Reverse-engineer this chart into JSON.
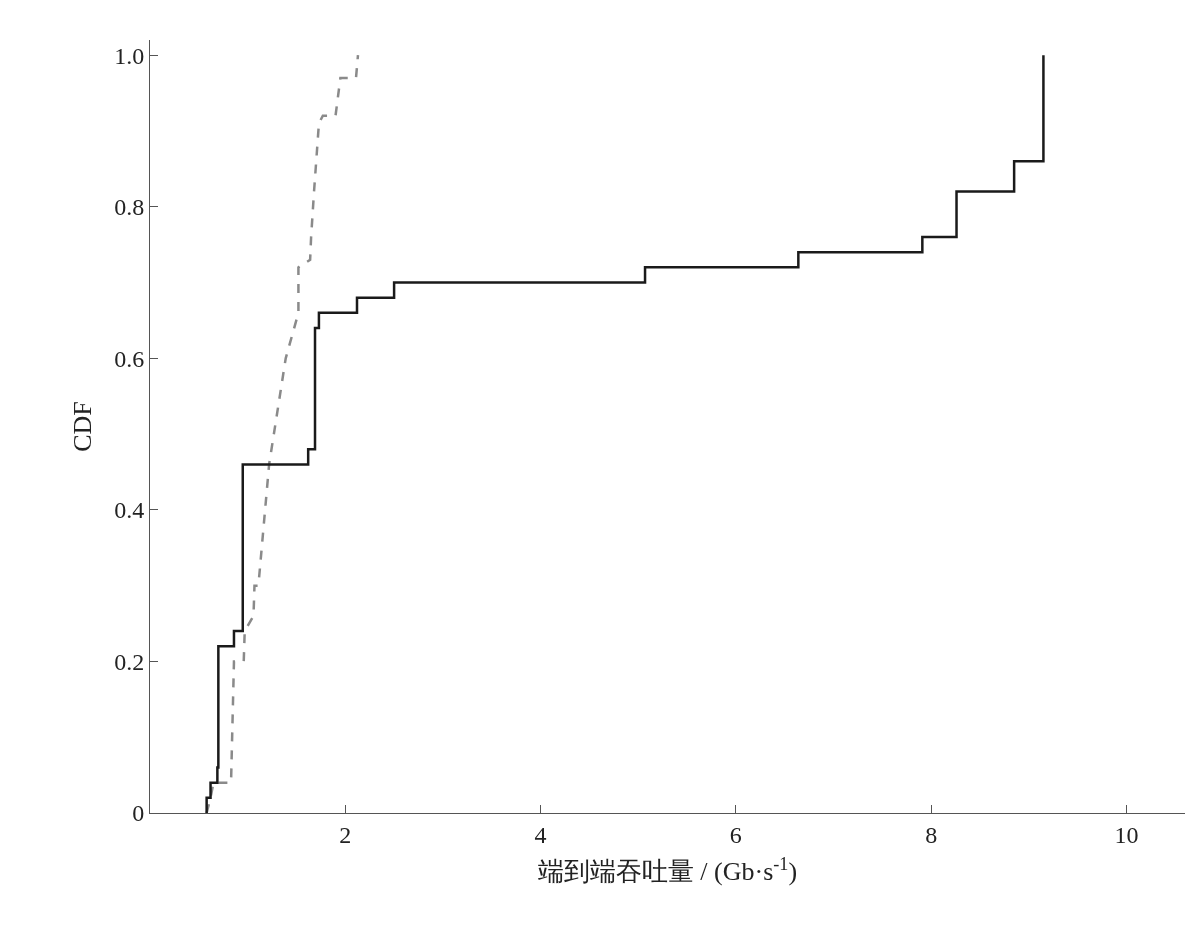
{
  "chart_data": {
    "type": "line",
    "xlabel": "端到端吞吐量 / (Gb·s$^{-1}$)",
    "ylabel": "CDF",
    "xlim": [
      0,
      10.6
    ],
    "xticks": [
      2,
      4,
      6,
      8,
      10
    ],
    "ylim": [
      0,
      1.02
    ],
    "yticks": [
      0,
      {
        "value": 0.2,
        "label": "0.2"
      },
      {
        "value": 0.4,
        "label": "0.4"
      },
      {
        "value": 0.6,
        "label": "0.6"
      },
      {
        "value": 0.8,
        "label": "0.8"
      },
      {
        "value": 1.0,
        "label": "1.0"
      }
    ],
    "series": [
      {
        "color": "#8a8a8a",
        "line_style": "dashed",
        "x": [
          0.58,
          0.62,
          0.65,
          0.83,
          0.86,
          0.96,
          0.97,
          1.06,
          1.07,
          1.11,
          1.22,
          1.39,
          1.52,
          1.52,
          1.64,
          1.65,
          1.68,
          1.73,
          1.77,
          1.9,
          1.95,
          2.11,
          2.13
        ],
        "values": [
          0,
          0.02,
          0.04,
          0.04,
          0.2,
          0.2,
          0.24,
          0.26,
          0.3,
          0.3,
          0.46,
          0.6,
          0.66,
          0.72,
          0.73,
          0.76,
          0.82,
          0.91,
          0.92,
          0.92,
          0.97,
          0.97,
          1.0
        ]
      },
      {
        "type": "step",
        "color": "#1a1a1a",
        "line_style": "solid",
        "x": [
          0.58,
          0.58,
          0.62,
          0.69,
          0.7,
          0.86,
          0.95,
          1.62,
          1.69,
          1.73,
          2.12,
          2.5,
          5.07,
          6.64,
          7.91,
          8.26,
          8.85,
          9.15
        ],
        "values": [
          0,
          0.02,
          0.04,
          0.06,
          0.22,
          0.24,
          0.46,
          0.48,
          0.64,
          0.66,
          0.68,
          0.7,
          0.72,
          0.74,
          0.76,
          0.82,
          0.86,
          1.0
        ]
      }
    ]
  }
}
